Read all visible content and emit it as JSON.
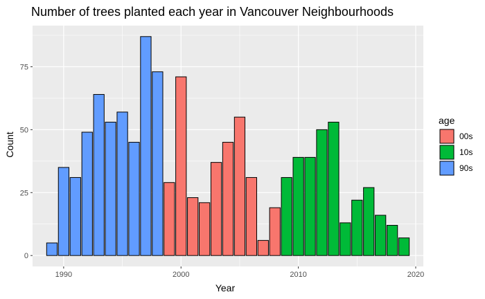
{
  "chart_data": {
    "type": "bar",
    "title": "Number of trees planted each year in Vancouver Neighbourhoods",
    "xlabel": "Year",
    "ylabel": "Count",
    "xlim": [
      1987.35,
      2020.65
    ],
    "ylim": [
      -4.35,
      91.35
    ],
    "x_ticks": [
      1990,
      2000,
      2010,
      2020
    ],
    "y_ticks": [
      0,
      25,
      50,
      75
    ],
    "grid": true,
    "legend_position": "right",
    "legend": {
      "title": "age",
      "items": [
        {
          "label": "00s",
          "color": "#F8766D"
        },
        {
          "label": "10s",
          "color": "#00BA38"
        },
        {
          "label": "90s",
          "color": "#619CFF"
        }
      ]
    },
    "series": [
      {
        "name": "90s",
        "color": "#619CFF",
        "x": [
          1989,
          1990,
          1991,
          1992,
          1993,
          1994,
          1995,
          1996,
          1997,
          1998
        ],
        "values": [
          5,
          35,
          31,
          49,
          64,
          53,
          57,
          45,
          87,
          73
        ]
      },
      {
        "name": "00s",
        "color": "#F8766D",
        "x": [
          1999,
          2000,
          2001,
          2002,
          2003,
          2004,
          2005,
          2006,
          2007,
          2008
        ],
        "values": [
          29,
          71,
          23,
          21,
          37,
          45,
          55,
          31,
          6,
          19
        ]
      },
      {
        "name": "10s",
        "color": "#00BA38",
        "x": [
          2009,
          2010,
          2011,
          2012,
          2013,
          2014,
          2015,
          2016,
          2017,
          2018,
          2019
        ],
        "values": [
          31,
          39,
          39,
          50,
          53,
          13,
          22,
          27,
          16,
          12,
          7
        ]
      }
    ]
  }
}
